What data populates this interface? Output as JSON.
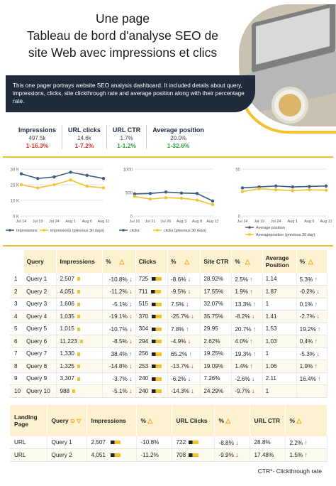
{
  "header": {
    "title_lines": [
      "Une page",
      "Tableau de bord d'analyse SEO de",
      "site Web avec impressions et clics"
    ],
    "description": "This one pager portrays website SEO analysis dashboard. It included details about query, impressions, clicks, site clickthrough rate and average position along with their percentage rate."
  },
  "kpis": [
    {
      "label": "Impressions",
      "value": "497.5k",
      "change": "1-16.3%",
      "trend": "down"
    },
    {
      "label": "URL clicks",
      "value": "14.6k",
      "change": "1-7.2%",
      "trend": "down"
    },
    {
      "label": "URL CTR",
      "value": "1.7%",
      "change": "1-1.2%",
      "trend": "up"
    },
    {
      "label": "Average position",
      "value": "20.0%",
      "change": "1-32.6%",
      "trend": "up"
    }
  ],
  "chart_data": [
    {
      "type": "line",
      "categories": [
        "Jul 14",
        "Jul 19",
        "Jul 24",
        "Aug 1",
        "Aug 6",
        "Aug 11"
      ],
      "yticks": [
        "30 K",
        "20 K",
        "10 K",
        "0 K"
      ],
      "ylim": [
        0,
        30
      ],
      "series": [
        {
          "name": "Impressions",
          "color": "#3d5a80",
          "values": [
            27,
            24,
            25,
            28,
            26,
            24
          ]
        },
        {
          "name": "impressions (previous 30 days)",
          "color": "#f1c232",
          "values": [
            20,
            18,
            20,
            23,
            19,
            18
          ]
        }
      ]
    },
    {
      "type": "line",
      "categories": [
        "Jul 16",
        "Jul 21",
        "Jul 26",
        "Aug 3",
        "Aug 8",
        "Aug 13"
      ],
      "yticks": [
        "1000",
        "500",
        "0"
      ],
      "ylim": [
        0,
        1000
      ],
      "series": [
        {
          "name": "clicks",
          "color": "#3d5a80",
          "values": [
            470,
            480,
            510,
            490,
            480,
            320
          ]
        },
        {
          "name": "clicks (previous 30 days)",
          "color": "#f1c232",
          "values": [
            420,
            360,
            390,
            380,
            340,
            240
          ]
        }
      ]
    },
    {
      "type": "line",
      "categories": [
        "Jul 14",
        "Jul 19",
        "Jul 24",
        "Aug 1",
        "Aug 6",
        "Aug 11"
      ],
      "yticks": [
        "50",
        "0"
      ],
      "ylim": [
        0,
        100
      ],
      "series": [
        {
          "name": "Average position",
          "color": "#3d5a80",
          "values": [
            60,
            62,
            64,
            62,
            63,
            64
          ]
        },
        {
          "name": "Averageposition (previous 30 day)",
          "color": "#f1c232",
          "values": [
            52,
            58,
            56,
            54,
            56,
            55
          ]
        }
      ]
    }
  ],
  "query_table": {
    "headers": [
      "Query",
      "Impressions",
      "%",
      "Clicks",
      "%",
      "Site CTR",
      "%",
      "Average Position",
      "%"
    ],
    "rows": [
      {
        "n": "1",
        "query": "Query 1",
        "impr": "2,507",
        "impr_pct": "-10.8%",
        "impr_dir": "down",
        "clicks": "725",
        "clicks_pct": "-8.6%",
        "clicks_dir": "down",
        "ctr": "28.92%",
        "ctr_pct": "2.5%",
        "ctr_dir": "up",
        "pos": "1.14",
        "pos_pct": "5.3%",
        "pos_dir": "up"
      },
      {
        "n": "2",
        "query": "Query 2",
        "impr": "4,051",
        "impr_pct": "-11.2%",
        "impr_dir": "down",
        "clicks": "711",
        "clicks_pct": "-9.5%",
        "clicks_dir": "down",
        "ctr": "17.55%",
        "ctr_pct": "1.9%",
        "ctr_dir": "up",
        "pos": "1.87",
        "pos_pct": "-0.2%",
        "pos_dir": "down"
      },
      {
        "n": "3",
        "query": "Query 3",
        "impr": "1,606",
        "impr_pct": "-5.1%",
        "impr_dir": "down",
        "clicks": "515",
        "clicks_pct": "7.5%",
        "clicks_dir": "down",
        "ctr": "32.07%",
        "ctr_pct": "13.3%",
        "ctr_dir": "up",
        "pos": "1",
        "pos_pct": "0.1%",
        "pos_dir": "up"
      },
      {
        "n": "4",
        "query": "Query 4",
        "impr": "1,035",
        "impr_pct": "-19.1%",
        "impr_dir": "down",
        "clicks": "370",
        "clicks_pct": "-25.7%",
        "clicks_dir": "down",
        "ctr": "35.75%",
        "ctr_pct": "-8.2%",
        "ctr_dir": "down",
        "pos": "1.41",
        "pos_pct": "-2.7%",
        "pos_dir": "down"
      },
      {
        "n": "5",
        "query": "Query 5",
        "impr": "1,015",
        "impr_pct": "-10.7%",
        "impr_dir": "down",
        "clicks": "304",
        "clicks_pct": "7.8%",
        "clicks_dir": "up",
        "ctr": "29.95",
        "ctr_pct": "20.7%",
        "ctr_dir": "up",
        "pos": "1.53",
        "pos_pct": "19.2%",
        "pos_dir": "up"
      },
      {
        "n": "6",
        "query": "Query 6",
        "impr": "11,223",
        "impr_pct": "-8.5%",
        "impr_dir": "down",
        "clicks": "294",
        "clicks_pct": "-4.9%",
        "clicks_dir": "down",
        "ctr": "2.62%",
        "ctr_pct": "4.0%",
        "ctr_dir": "up",
        "pos": "1.03",
        "pos_pct": "0.4%",
        "pos_dir": "up"
      },
      {
        "n": "7",
        "query": "Query 7",
        "impr": "1,330",
        "impr_pct": "38.4%",
        "impr_dir": "up",
        "clicks": "256",
        "clicks_pct": "65.2%",
        "clicks_dir": "up",
        "ctr": "19.25%",
        "ctr_pct": "19.3%",
        "ctr_dir": "up",
        "pos": "1",
        "pos_pct": "-5.3%",
        "pos_dir": "down"
      },
      {
        "n": "8",
        "query": "Query 8",
        "impr": "1,325",
        "impr_pct": "-14.8%",
        "impr_dir": "down",
        "clicks": "253",
        "clicks_pct": "-13.7%",
        "clicks_dir": "down",
        "ctr": "19.09%",
        "ctr_pct": "1.4%",
        "ctr_dir": "up",
        "pos": "1.06",
        "pos_pct": "1.9%",
        "pos_dir": "up"
      },
      {
        "n": "9",
        "query": "Query 9",
        "impr": "3,307",
        "impr_pct": "-3.7%",
        "impr_dir": "down",
        "clicks": "240",
        "clicks_pct": "-6.2%",
        "clicks_dir": "down",
        "ctr": "7.26%",
        "ctr_pct": "-2.6%",
        "ctr_dir": "down",
        "pos": "2.11",
        "pos_pct": "16.4%",
        "pos_dir": "up"
      },
      {
        "n": "10",
        "query": "Query 10",
        "impr": "988",
        "impr_pct": "-5.1%",
        "impr_dir": "down",
        "clicks": "240",
        "clicks_pct": "-14.3%",
        "clicks_dir": "down",
        "ctr": "24.29%",
        "ctr_pct": "-9.7%",
        "ctr_dir": "down",
        "pos": "1",
        "pos_pct": "",
        "pos_dir": ""
      }
    ]
  },
  "landing_table": {
    "headers": [
      "Landing Page",
      "Query",
      "Impressions",
      "%",
      "URL Clicks",
      "%",
      "URL CTR",
      "%"
    ],
    "rows": [
      {
        "page": "URL",
        "query": "Query 1",
        "impr": "2,507",
        "impr_pct": "-10.8%",
        "clicks": "722",
        "clicks_pct": "-8.8%",
        "clicks_dir": "down",
        "ctr": "28.8%",
        "ctr_pct": "2.2%",
        "ctr_dir": "up"
      },
      {
        "page": "URL",
        "query": "Query 2",
        "impr": "4,051",
        "impr_pct": "-11.2%",
        "clicks": "708",
        "clicks_pct": "-9.9%",
        "clicks_dir": "down",
        "ctr": "17.48%",
        "ctr_pct": "1.5%",
        "ctr_dir": "up"
      }
    ]
  },
  "footnote": "CTR*- Clickthrough rate"
}
